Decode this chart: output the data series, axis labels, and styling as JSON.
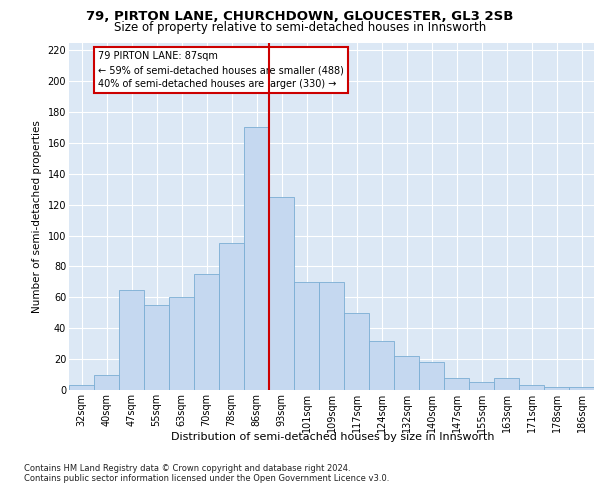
{
  "title1": "79, PIRTON LANE, CHURCHDOWN, GLOUCESTER, GL3 2SB",
  "title2": "Size of property relative to semi-detached houses in Innsworth",
  "xlabel": "Distribution of semi-detached houses by size in Innsworth",
  "ylabel": "Number of semi-detached properties",
  "footer1": "Contains HM Land Registry data © Crown copyright and database right 2024.",
  "footer2": "Contains public sector information licensed under the Open Government Licence v3.0.",
  "categories": [
    "32sqm",
    "40sqm",
    "47sqm",
    "55sqm",
    "63sqm",
    "70sqm",
    "78sqm",
    "86sqm",
    "93sqm",
    "101sqm",
    "109sqm",
    "117sqm",
    "124sqm",
    "132sqm",
    "140sqm",
    "147sqm",
    "155sqm",
    "163sqm",
    "171sqm",
    "178sqm",
    "186sqm"
  ],
  "values": [
    3,
    10,
    65,
    55,
    60,
    75,
    95,
    170,
    125,
    70,
    70,
    50,
    32,
    22,
    18,
    8,
    5,
    8,
    3,
    2,
    2
  ],
  "bar_color": "#c5d8f0",
  "bar_edge_color": "#7aadd4",
  "ref_line_label": "79 PIRTON LANE: 87sqm",
  "annotation_smaller": "← 59% of semi-detached houses are smaller (488)",
  "annotation_larger": "40% of semi-detached houses are larger (330) →",
  "box_edge_color": "#cc0000",
  "ref_line_color": "#cc0000",
  "ylim": [
    0,
    225
  ],
  "yticks": [
    0,
    20,
    40,
    60,
    80,
    100,
    120,
    140,
    160,
    180,
    200,
    220
  ],
  "background_color": "#dce8f5",
  "grid_color": "#ffffff",
  "title1_fontsize": 9.5,
  "title2_fontsize": 8.5,
  "ylabel_fontsize": 7.5,
  "tick_fontsize": 7,
  "annot_fontsize": 7,
  "footer_fontsize": 6,
  "xlabel_fontsize": 8
}
